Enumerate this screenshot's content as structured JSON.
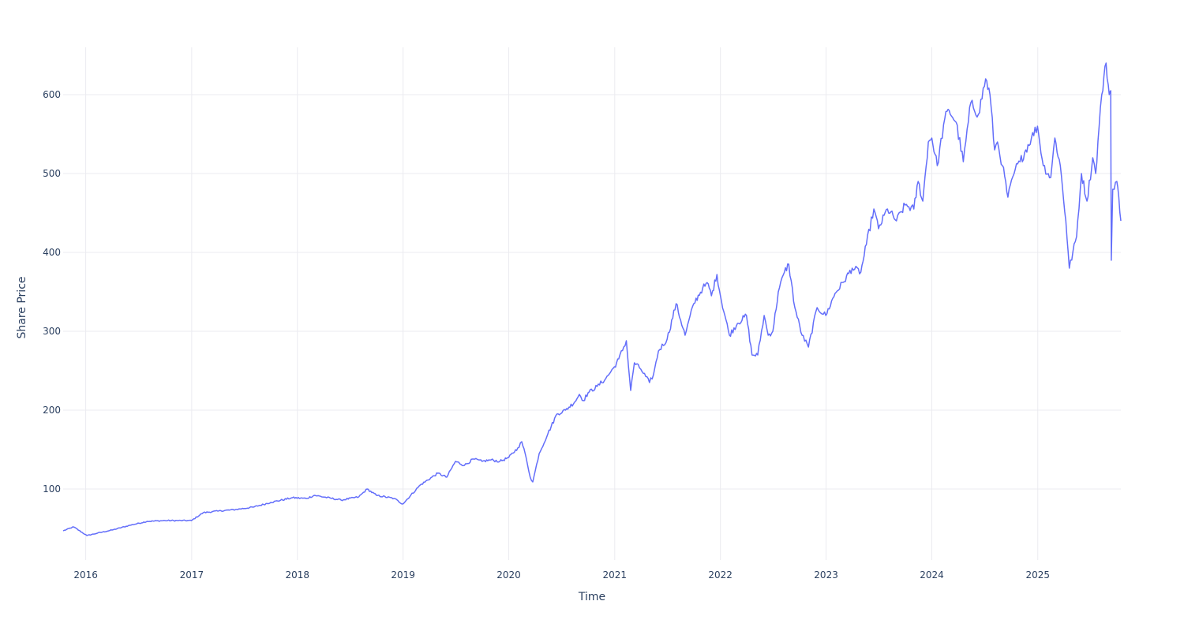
{
  "chart_data": {
    "type": "line",
    "title": "",
    "xlabel": "Time",
    "ylabel": "Share Price",
    "xlim": [
      "2015-10-15",
      "2025-10-15"
    ],
    "ylim": [
      10,
      660
    ],
    "x_ticks": [
      "2016",
      "2017",
      "2018",
      "2019",
      "2020",
      "2021",
      "2022",
      "2023",
      "2024",
      "2025"
    ],
    "y_ticks": [
      100,
      200,
      300,
      400,
      500,
      600
    ],
    "grid": true,
    "legend": "none",
    "colors": {
      "line": "#636efa",
      "grid": "#ebebf0",
      "text": "#2a3f5f"
    },
    "series": [
      {
        "x": [
          "2015-10-15",
          "2015-11-20",
          "2016-01-05",
          "2016-02-10",
          "2016-04-01",
          "2016-06-01",
          "2016-08-01",
          "2016-10-01",
          "2016-12-31",
          "2017-02-10",
          "2017-04-01",
          "2017-06-01",
          "2017-08-01",
          "2017-10-01",
          "2017-12-15",
          "2018-02-01",
          "2018-03-01",
          "2018-06-01",
          "2018-08-01",
          "2018-08-30",
          "2018-10-01",
          "2018-12-01",
          "2018-12-31",
          "2019-03-01",
          "2019-05-01",
          "2019-06-01",
          "2019-07-01",
          "2019-08-01",
          "2019-09-01",
          "2019-10-01",
          "2019-11-01",
          "2019-12-01",
          "2020-01-01",
          "2020-02-01",
          "2020-02-15",
          "2020-03-01",
          "2020-03-15",
          "2020-03-24",
          "2020-04-15",
          "2020-05-15",
          "2020-06-15",
          "2020-07-15",
          "2020-08-15",
          "2020-09-01",
          "2020-09-15",
          "2020-10-01",
          "2020-11-01",
          "2020-12-01",
          "2020-12-31",
          "2021-01-15",
          "2021-02-10",
          "2021-02-25",
          "2021-03-10",
          "2021-04-01",
          "2021-05-01",
          "2021-05-15",
          "2021-06-01",
          "2021-07-01",
          "2021-08-01",
          "2021-09-01",
          "2021-10-01",
          "2021-11-01",
          "2021-11-20",
          "2021-12-01",
          "2021-12-20",
          "2022-01-01",
          "2022-02-01",
          "2022-03-01",
          "2022-04-01",
          "2022-04-20",
          "2022-05-10",
          "2022-06-01",
          "2022-06-15",
          "2022-07-01",
          "2022-07-20",
          "2022-08-10",
          "2022-08-25",
          "2022-09-15",
          "2022-10-10",
          "2022-11-01",
          "2022-12-01",
          "2022-12-31",
          "2023-02-01",
          "2023-03-01",
          "2023-04-01",
          "2023-05-01",
          "2023-05-20",
          "2023-06-15",
          "2023-07-01",
          "2023-08-01",
          "2023-09-01",
          "2023-10-01",
          "2023-10-31",
          "2023-11-15",
          "2023-12-01",
          "2023-12-20",
          "2024-01-01",
          "2024-01-20",
          "2024-02-15",
          "2024-03-01",
          "2024-03-25",
          "2024-04-19",
          "2024-05-15",
          "2024-06-10",
          "2024-07-05",
          "2024-07-20",
          "2024-08-05",
          "2024-08-15",
          "2024-09-01",
          "2024-09-20",
          "2024-10-15",
          "2024-11-01",
          "2024-12-10",
          "2024-12-31",
          "2025-01-20",
          "2025-02-15",
          "2025-03-01",
          "2025-03-20",
          "2025-04-08",
          "2025-04-20",
          "2025-05-15",
          "2025-06-01",
          "2025-06-20",
          "2025-07-10",
          "2025-07-20",
          "2025-08-01",
          "2025-08-10",
          "2025-08-25",
          "2025-09-05",
          "2025-09-10",
          "2025-09-12",
          "2025-09-17",
          "2025-09-22",
          "2025-10-01",
          "2025-10-08",
          "2025-10-15"
        ],
        "y": [
          47,
          52,
          41,
          44,
          48,
          54,
          59,
          60,
          60,
          70,
          72,
          74,
          77,
          83,
          89,
          88,
          92,
          86,
          90,
          100,
          92,
          88,
          81,
          105,
          120,
          115,
          135,
          130,
          138,
          135,
          137,
          135,
          140,
          152,
          160,
          140,
          115,
          109,
          145,
          170,
          195,
          200,
          210,
          220,
          212,
          222,
          230,
          240,
          255,
          265,
          288,
          225,
          260,
          252,
          235,
          245,
          275,
          290,
          335,
          295,
          335,
          355,
          360,
          345,
          372,
          345,
          295,
          310,
          320,
          270,
          270,
          320,
          295,
          300,
          350,
          375,
          385,
          330,
          295,
          280,
          330,
          320,
          348,
          362,
          380,
          375,
          410,
          455,
          430,
          455,
          440,
          460,
          455,
          490,
          465,
          540,
          545,
          510,
          570,
          580,
          565,
          515,
          590,
          575,
          620,
          600,
          530,
          540,
          510,
          470,
          505,
          515,
          545,
          560,
          510,
          495,
          545,
          510,
          440,
          380,
          420,
          500,
          465,
          520,
          500,
          560,
          600,
          640,
          600,
          605,
          390,
          480,
          480,
          490,
          470,
          440
        ]
      }
    ]
  }
}
